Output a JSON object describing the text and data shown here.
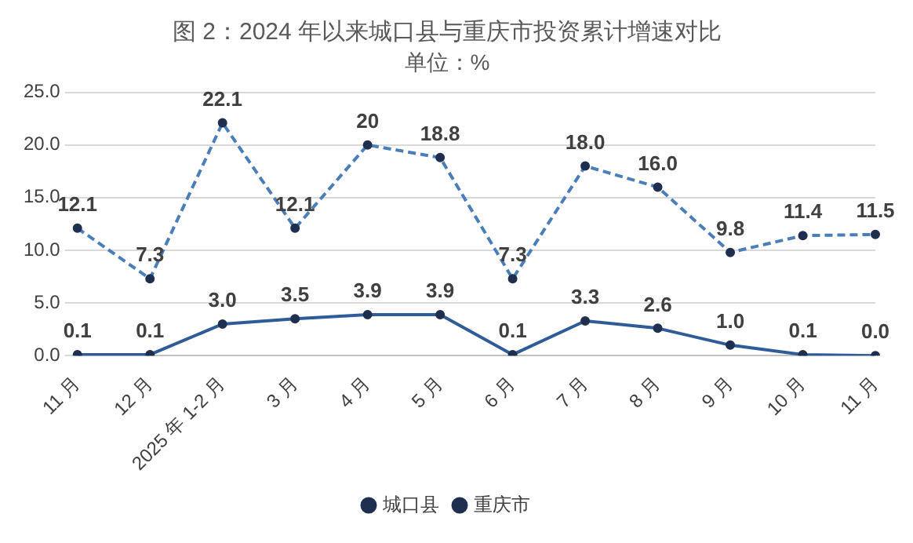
{
  "chart_data": {
    "type": "line",
    "title": "图 2：2024 年以来城口县与重庆市投资累计增速对比",
    "subtitle": "单位：%",
    "categories": [
      "11 月",
      "12 月",
      "2025 年 1-2 月",
      "3 月",
      "4 月",
      "5 月",
      "6 月",
      "7 月",
      "8 月",
      "9 月",
      "10 月",
      "11 月"
    ],
    "series": [
      {
        "name": "城口县",
        "color": "#4a7ebb",
        "line_style": "dashed",
        "values": [
          12.1,
          7.3,
          22.1,
          12.1,
          20,
          18.8,
          7.3,
          18.0,
          16.0,
          9.8,
          11.4,
          11.5
        ],
        "value_labels": [
          "12.1",
          "7.3",
          "22.1",
          "12.1",
          "20",
          "18.8",
          "7.3",
          "18.0",
          "16.0",
          "9.8",
          "11.4",
          "11.5"
        ]
      },
      {
        "name": "重庆市",
        "color": "#2f5c99",
        "line_style": "solid",
        "values": [
          0.1,
          0.1,
          3.0,
          3.5,
          3.9,
          3.9,
          0.1,
          3.3,
          2.6,
          1.0,
          0.1,
          0.0
        ],
        "value_labels": [
          "0.1",
          "0.1",
          "3.0",
          "3.5",
          "3.9",
          "3.9",
          "0.1",
          "3.3",
          "2.6",
          "1.0",
          "0.1",
          "0.0"
        ]
      }
    ],
    "ylim": [
      0,
      25
    ],
    "yticks": [
      {
        "value": 0,
        "label": "0.0"
      },
      {
        "value": 5,
        "label": "5.0"
      },
      {
        "value": 10,
        "label": "10.0"
      },
      {
        "value": 15,
        "label": "15.0"
      },
      {
        "value": 20,
        "label": "20.0"
      },
      {
        "value": 25,
        "label": "25.0"
      }
    ],
    "grid": "y",
    "legend": "bottom",
    "marker": "circle"
  }
}
